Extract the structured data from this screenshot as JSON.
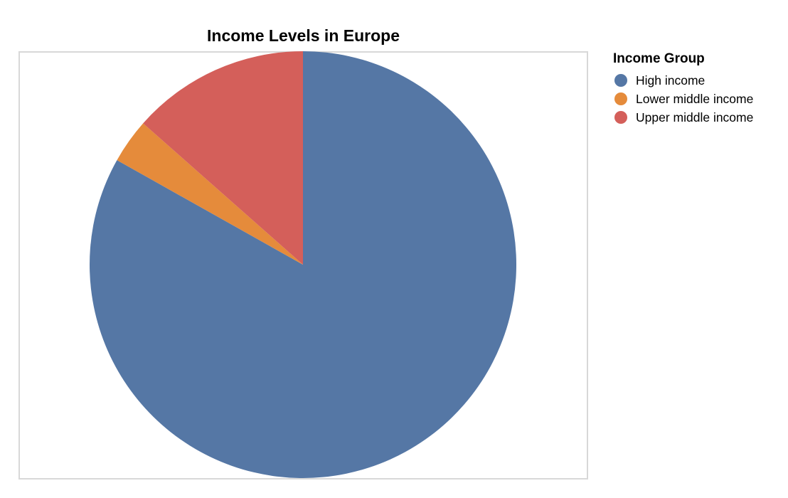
{
  "chart_data": {
    "type": "pie",
    "title": "Income Levels in Europe",
    "legend_title": "Income Group",
    "legend_position": "right",
    "categories": [
      "High income",
      "Lower middle income",
      "Upper middle income"
    ],
    "values": [
      37,
      1.5,
      6
    ],
    "colors": [
      "#5577a5",
      "#e58b3b",
      "#d45f5a"
    ],
    "start_angle_deg": 0,
    "direction": "clockwise"
  }
}
